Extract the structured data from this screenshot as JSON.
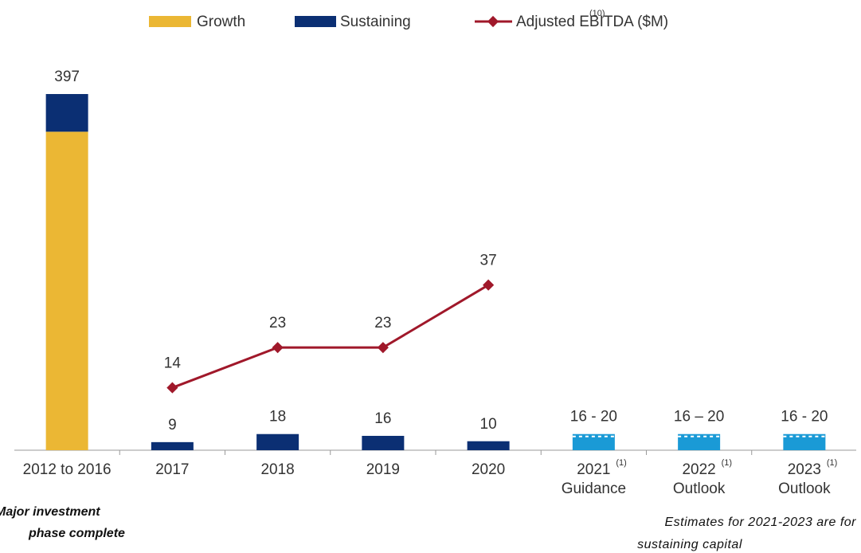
{
  "chart_data": {
    "type": "bar",
    "stacked": true,
    "categories": [
      "2012 to 2016",
      "2017",
      "2018",
      "2019",
      "2020",
      "2021",
      "2022",
      "2023"
    ],
    "category_notes": [
      null,
      null,
      null,
      null,
      null,
      "(1)",
      "(1)",
      "(1)"
    ],
    "category_sublabels": [
      null,
      null,
      null,
      null,
      null,
      "Guidance",
      "Outlook",
      "Outlook"
    ],
    "series": [
      {
        "name": "Growth",
        "color": "#ebb734",
        "values": [
          355,
          null,
          null,
          null,
          null,
          null,
          null,
          null
        ]
      },
      {
        "name": "Sustaining",
        "color": "#0b2f73",
        "values": [
          42,
          9,
          18,
          16,
          10,
          null,
          null,
          null
        ]
      },
      {
        "name": "Adjusted EBITDA ($M)",
        "name_note": "(10)",
        "type": "line",
        "axis": "y2",
        "color": "#a0182a",
        "values": [
          null,
          14,
          23,
          23,
          37,
          null,
          null,
          null
        ]
      }
    ],
    "estimates": {
      "color": "#1a9ad6",
      "values": [
        null,
        null,
        null,
        null,
        null,
        18,
        18,
        18
      ]
    },
    "totals": [
      397,
      9,
      18,
      16,
      10,
      null,
      null,
      null
    ],
    "value_labels": [
      "397",
      "9",
      "18",
      "16",
      "10",
      "16 - 20",
      "16 – 20",
      "16 - 20"
    ],
    "ylim": [
      0,
      413
    ],
    "y2lim": [
      0,
      83
    ],
    "annotations": [
      "Major investment phase complete",
      "Estimates for 2021-2023 are for sustaining capital"
    ]
  }
}
